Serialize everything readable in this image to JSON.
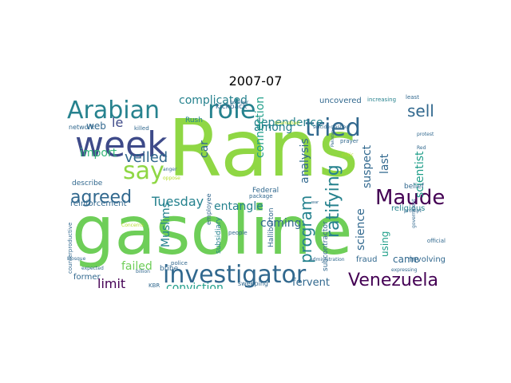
{
  "title": "2007-07",
  "palette": {
    "dark_purple": "#440154",
    "indigo": "#3e4a89",
    "teal_blue": "#31688e",
    "teal": "#26828e",
    "green_teal": "#1f9e89",
    "green": "#35b779",
    "light_green": "#6ece58",
    "lime": "#8fd744",
    "yellow_green": "#b5de2b"
  },
  "words": [
    {
      "text": "Rans"
    },
    {
      "text": "gasoline"
    },
    {
      "text": "week"
    },
    {
      "text": "investigator"
    },
    {
      "text": "Arabian"
    },
    {
      "text": "role"
    },
    {
      "text": "tried"
    },
    {
      "text": "say"
    },
    {
      "text": "Maude"
    },
    {
      "text": "Venezuela"
    },
    {
      "text": "agreed"
    },
    {
      "text": "sell"
    },
    {
      "text": "veiled"
    },
    {
      "text": "ratifying"
    },
    {
      "text": "program"
    },
    {
      "text": "limit"
    },
    {
      "text": "Tuesday"
    },
    {
      "text": "conviction"
    },
    {
      "text": "failed"
    },
    {
      "text": "le"
    },
    {
      "text": "web"
    },
    {
      "text": "import"
    },
    {
      "text": "complicated"
    },
    {
      "text": "dependence"
    },
    {
      "text": "connection"
    },
    {
      "text": "analysis"
    },
    {
      "text": "among"
    },
    {
      "text": "suspect"
    },
    {
      "text": "last"
    },
    {
      "text": "scientist"
    },
    {
      "text": "science"
    },
    {
      "text": "entangle"
    },
    {
      "text": "car"
    },
    {
      "text": "Muslims"
    },
    {
      "text": "coming"
    },
    {
      "text": "fervent"
    },
    {
      "text": "came"
    },
    {
      "text": "using"
    },
    {
      "text": "religious"
    },
    {
      "text": "uncovered"
    },
    {
      "text": "belief"
    },
    {
      "text": "involving"
    },
    {
      "text": "fraud"
    },
    {
      "text": "Federal"
    },
    {
      "text": "Halliburton"
    },
    {
      "text": "subcontractor"
    },
    {
      "text": "subsidiary"
    },
    {
      "text": "employee"
    },
    {
      "text": "bribe"
    },
    {
      "text": "reinforcement"
    },
    {
      "text": "describe"
    },
    {
      "text": "network"
    },
    {
      "text": "import"
    },
    {
      "text": "kickback"
    },
    {
      "text": "Rush"
    },
    {
      "text": "killed"
    },
    {
      "text": "bomber"
    },
    {
      "text": "increasing"
    },
    {
      "text": "least"
    },
    {
      "text": "protest"
    },
    {
      "text": "official"
    },
    {
      "text": "government"
    },
    {
      "text": "prompt"
    },
    {
      "text": "expressing"
    },
    {
      "text": "administration"
    },
    {
      "text": "sweeping"
    },
    {
      "text": "package"
    },
    {
      "text": "people"
    },
    {
      "text": "police"
    },
    {
      "text": "billion"
    },
    {
      "text": "KBR"
    },
    {
      "text": "former"
    },
    {
      "text": "Congress"
    },
    {
      "text": "expected"
    },
    {
      "text": "Mosque"
    },
    {
      "text": "counterproductive"
    },
    {
      "text": "anger"
    },
    {
      "text": "oppose"
    },
    {
      "text": "Concerns"
    },
    {
      "text": "Islamabad"
    },
    {
      "text": "suicide"
    },
    {
      "text": "clashed"
    },
    {
      "text": "prayer"
    },
    {
      "text": "Red"
    },
    {
      "text": "Pakistan"
    },
    {
      "text": "critic"
    },
    {
      "text": "war"
    }
  ]
}
